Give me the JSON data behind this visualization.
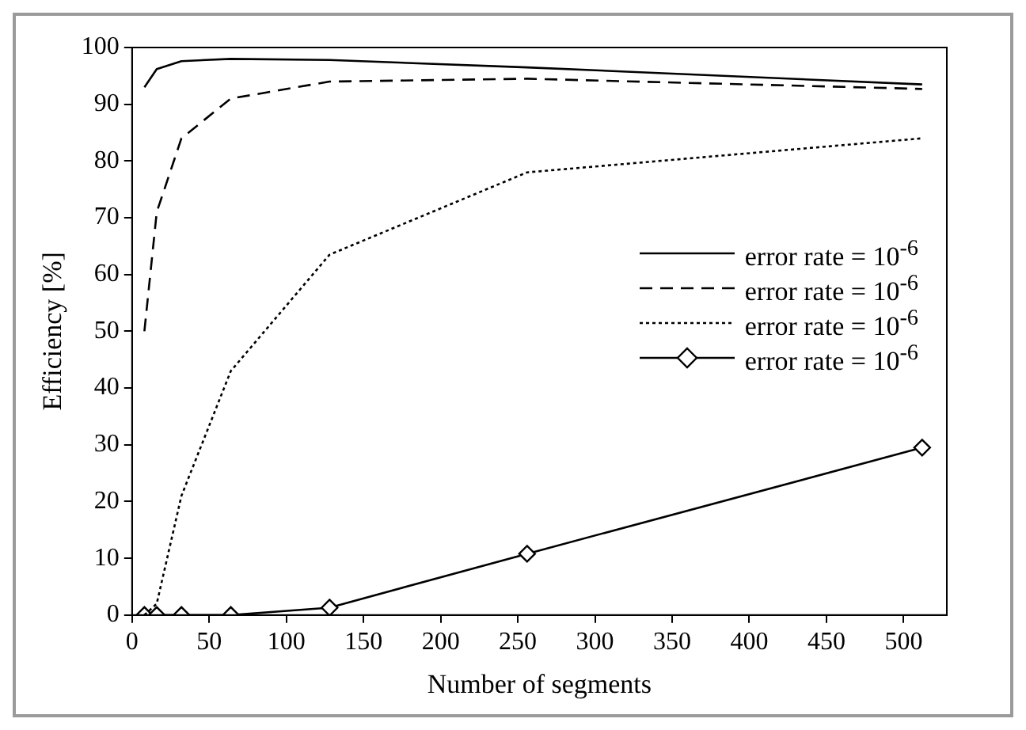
{
  "chart_data": {
    "type": "line",
    "xlabel": "Number of segments",
    "ylabel": "Efficiency [%]",
    "x": [
      8,
      16,
      32,
      64,
      128,
      256,
      512
    ],
    "xlim": [
      0,
      528
    ],
    "xticks": [
      0,
      50,
      100,
      150,
      200,
      250,
      300,
      350,
      400,
      450,
      500
    ],
    "ylim": [
      0,
      100
    ],
    "yticks": [
      0,
      10,
      20,
      30,
      40,
      50,
      60,
      70,
      80,
      90,
      100
    ],
    "grid": false,
    "legend": "right",
    "series": [
      {
        "name": "error rate = 10$^{-6}$",
        "color": "#000000",
        "line_style": "solid",
        "marker": "none",
        "values": [
          93,
          96.2,
          97.6,
          98,
          97.8,
          96.5,
          93.5
        ]
      },
      {
        "name": "error rate = 10$^{-6}$",
        "color": "#000000",
        "line_style": "dashed",
        "marker": "none",
        "values": [
          50,
          71,
          84,
          91,
          94,
          94.5,
          92.7
        ]
      },
      {
        "name": "error rate = 10$^{-6}$",
        "color": "#000000",
        "line_style": "dotted",
        "marker": "none",
        "values": [
          0,
          2,
          21,
          43,
          63.5,
          78,
          84
        ]
      },
      {
        "name": "error rate = 10$^{-6}$",
        "color": "#000000",
        "line_style": "solid",
        "marker": "diamond",
        "values": [
          0,
          0,
          0,
          0,
          1.3,
          10.8,
          29.5
        ]
      }
    ]
  }
}
